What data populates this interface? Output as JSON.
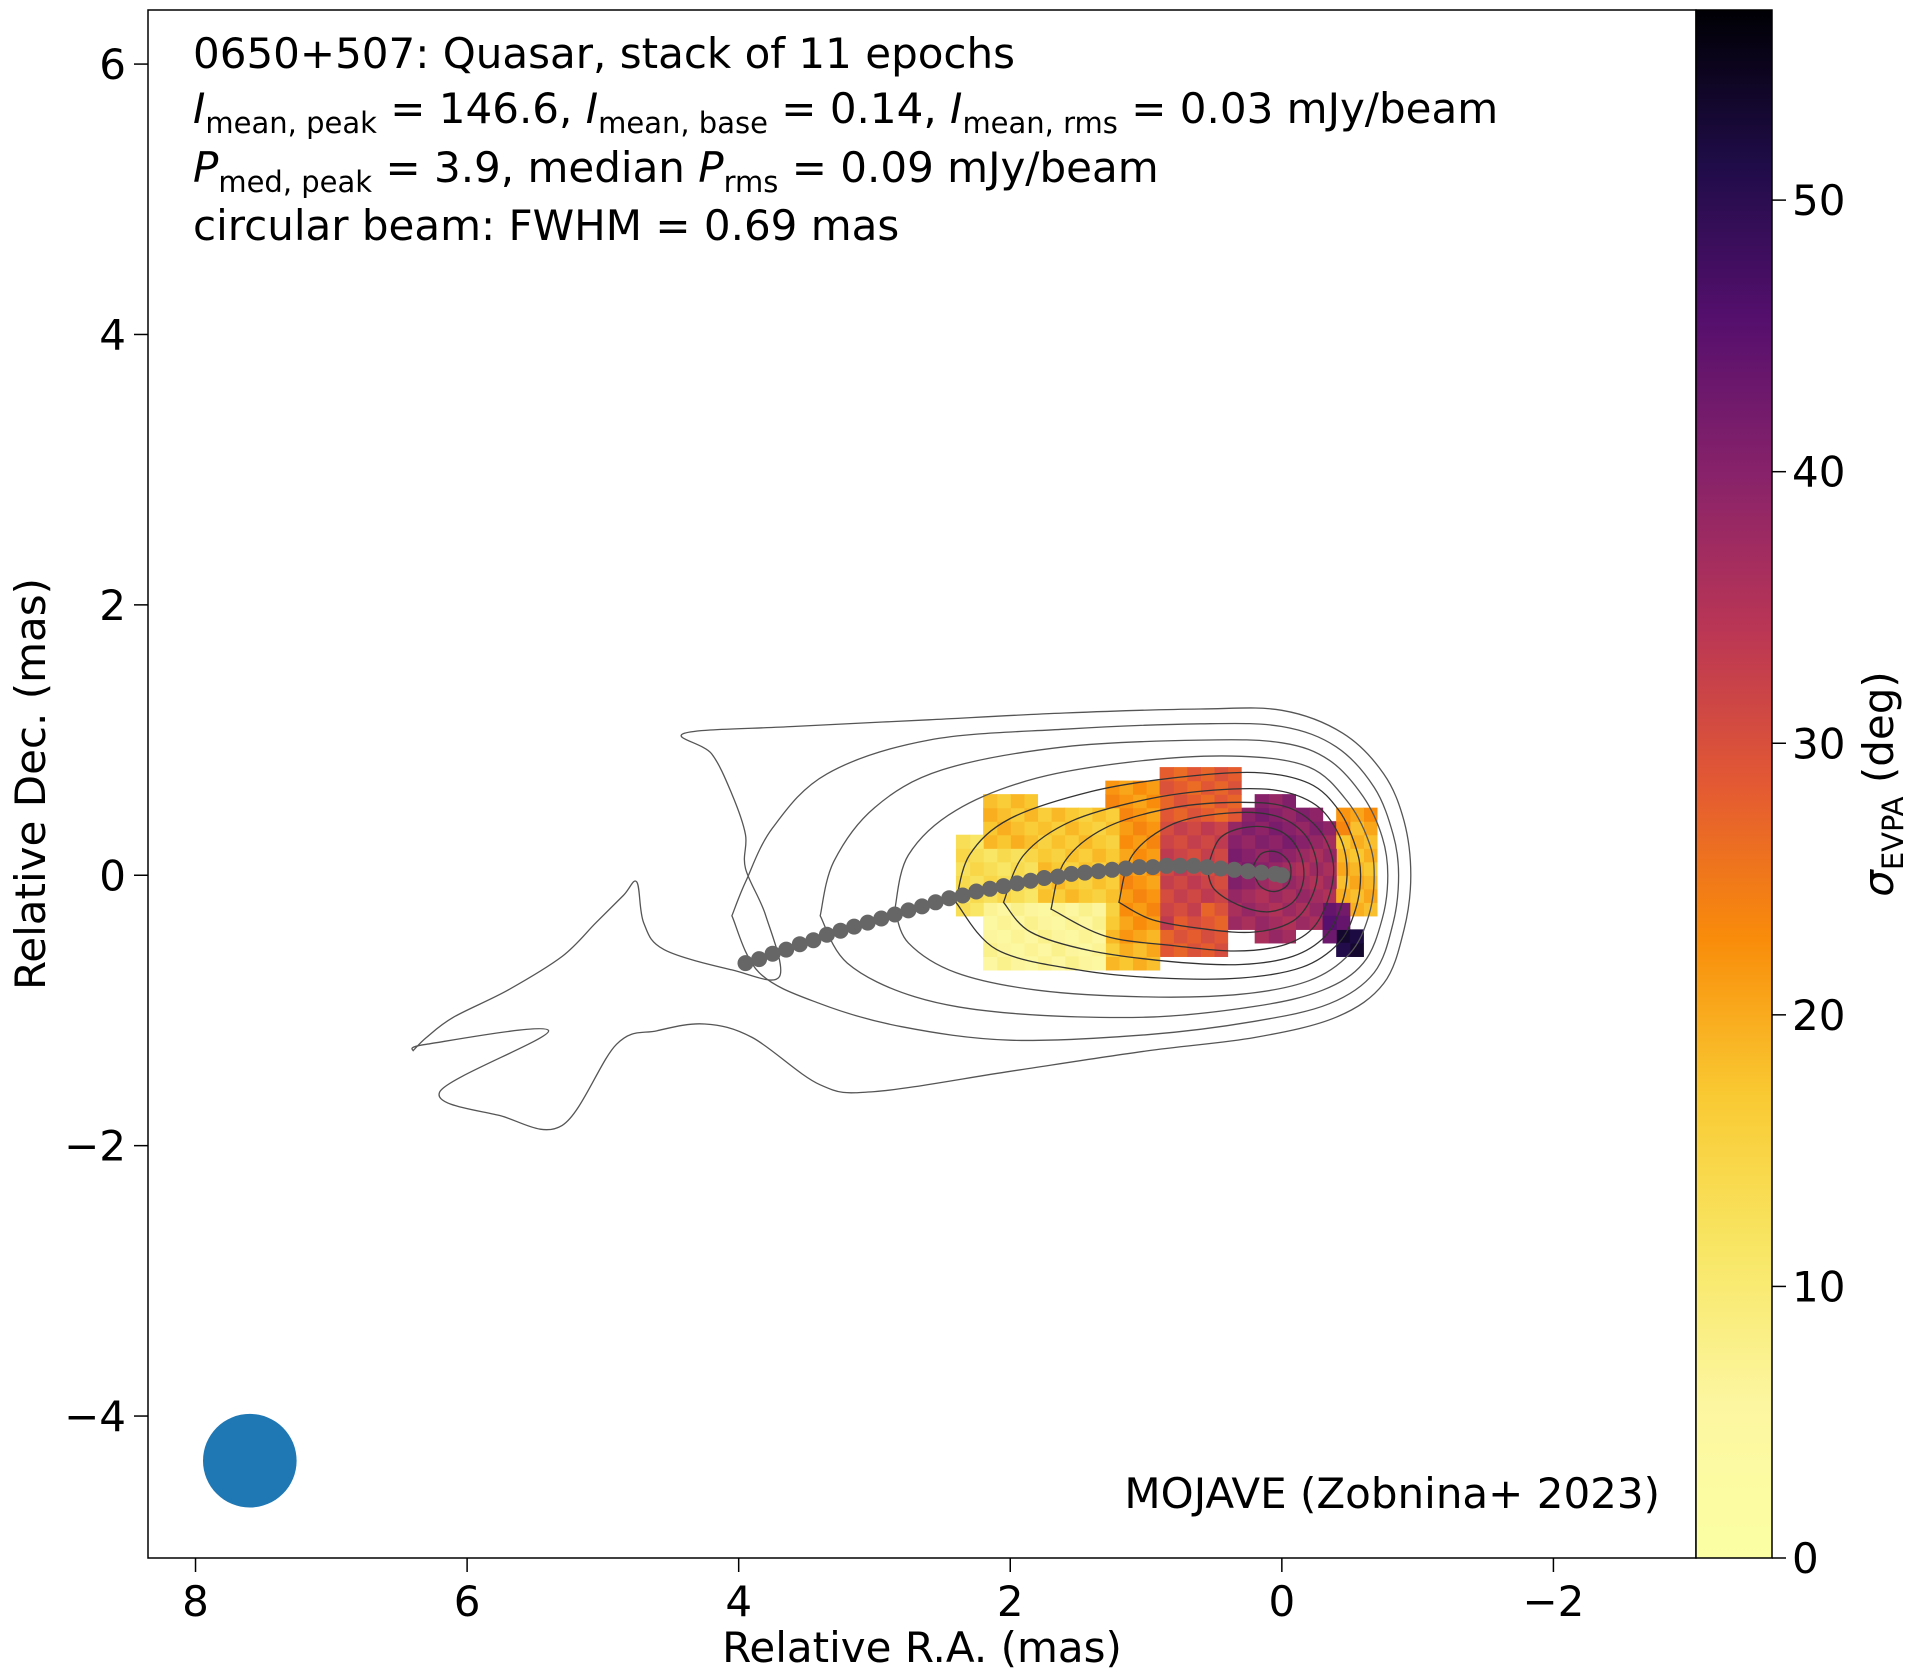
{
  "chart_data": {
    "type": "heatmap",
    "title_lines": {
      "line1": "0650+507: Quasar, stack of 11 epochs",
      "line2": {
        "i_peak_sym": "I",
        "i_peak_sub": "mean, peak",
        "i_peak_val": " = 146.6, ",
        "i_base_sym": "I",
        "i_base_sub": "mean, base",
        "i_base_val": " = 0.14, ",
        "i_rms_sym": "I",
        "i_rms_sub": "mean, rms",
        "i_rms_val": " = 0.03 mJy/beam"
      },
      "line3": {
        "p_peak_sym": "P",
        "p_peak_sub": "med, peak",
        "p_peak_val": " = 3.9, median ",
        "p_rms_sym": "P",
        "p_rms_sub": "rms",
        "p_rms_val": " = 0.09 mJy/beam"
      },
      "line4": "circular beam: FWHM = 0.69 mas"
    },
    "credit": "MOJAVE (Zobnina+ 2023)",
    "xlabel": "Relative R.A. (mas)",
    "ylabel": "Relative Dec. (mas)",
    "xlim": [
      8.35,
      -3.05
    ],
    "ylim": [
      -5.05,
      6.4
    ],
    "xticks": [
      8,
      6,
      4,
      2,
      0,
      -2
    ],
    "yticks": [
      6,
      4,
      2,
      0,
      -2,
      -4
    ],
    "xtick_labels": [
      "8",
      "6",
      "4",
      "2",
      "0",
      "−2"
    ],
    "ytick_labels": [
      "6",
      "4",
      "2",
      "0",
      "−2",
      "−4"
    ],
    "colorbar": {
      "label_sym": "σ",
      "label_sub": "EVPA",
      "label_unit": " (deg)",
      "range": [
        0,
        57
      ],
      "ticks": [
        0,
        10,
        20,
        30,
        40,
        50
      ],
      "tick_labels": [
        "0",
        "10",
        "20",
        "30",
        "40",
        "50"
      ],
      "colormap": "inferno_r"
    },
    "beam": {
      "ra": 7.6,
      "dec": -4.33,
      "fwhm": 0.69,
      "color": "#1f77b4"
    },
    "ridge_line": {
      "color": "#666666",
      "points": [
        [
          3.95,
          -0.65
        ],
        [
          3.85,
          -0.62
        ],
        [
          3.75,
          -0.58
        ],
        [
          3.65,
          -0.55
        ],
        [
          3.55,
          -0.51
        ],
        [
          3.45,
          -0.48
        ],
        [
          3.35,
          -0.44
        ],
        [
          3.25,
          -0.41
        ],
        [
          3.15,
          -0.38
        ],
        [
          3.05,
          -0.35
        ],
        [
          2.95,
          -0.32
        ],
        [
          2.85,
          -0.29
        ],
        [
          2.75,
          -0.26
        ],
        [
          2.65,
          -0.23
        ],
        [
          2.55,
          -0.2
        ],
        [
          2.45,
          -0.17
        ],
        [
          2.35,
          -0.15
        ],
        [
          2.25,
          -0.12
        ],
        [
          2.15,
          -0.1
        ],
        [
          2.05,
          -0.08
        ],
        [
          1.95,
          -0.06
        ],
        [
          1.85,
          -0.04
        ],
        [
          1.75,
          -0.02
        ],
        [
          1.65,
          -0.01
        ],
        [
          1.55,
          0.01
        ],
        [
          1.45,
          0.02
        ],
        [
          1.35,
          0.03
        ],
        [
          1.25,
          0.04
        ],
        [
          1.15,
          0.05
        ],
        [
          1.05,
          0.06
        ],
        [
          0.95,
          0.06
        ],
        [
          0.85,
          0.07
        ],
        [
          0.75,
          0.07
        ],
        [
          0.65,
          0.07
        ],
        [
          0.55,
          0.06
        ],
        [
          0.45,
          0.05
        ],
        [
          0.35,
          0.04
        ],
        [
          0.25,
          0.03
        ],
        [
          0.15,
          0.02
        ],
        [
          0.05,
          0.01
        ],
        [
          0.0,
          0.0
        ]
      ]
    },
    "contours": [
      [
        [
          6.4,
          -1.3
        ],
        [
          6.3,
          -1.2
        ],
        [
          6.1,
          -1.05
        ],
        [
          5.7,
          -0.85
        ],
        [
          5.3,
          -0.6
        ],
        [
          5.05,
          -0.35
        ],
        [
          4.85,
          -0.15
        ],
        [
          4.75,
          -0.05
        ],
        [
          4.7,
          -0.35
        ],
        [
          4.55,
          -0.55
        ],
        [
          4.05,
          -0.7
        ],
        [
          3.7,
          -0.75
        ],
        [
          3.8,
          -0.3
        ],
        [
          3.95,
          0.05
        ],
        [
          3.95,
          0.3
        ],
        [
          4.05,
          0.6
        ],
        [
          4.2,
          0.9
        ],
        [
          4.4,
          1.05
        ],
        [
          3.6,
          1.1
        ],
        [
          2.6,
          1.15
        ],
        [
          1.6,
          1.2
        ],
        [
          0.6,
          1.23
        ],
        [
          0.0,
          1.22
        ],
        [
          -0.45,
          1.05
        ],
        [
          -0.75,
          0.75
        ],
        [
          -0.9,
          0.4
        ],
        [
          -0.95,
          0.0
        ],
        [
          -0.9,
          -0.4
        ],
        [
          -0.75,
          -0.8
        ],
        [
          -0.4,
          -1.05
        ],
        [
          0.2,
          -1.2
        ],
        [
          1.0,
          -1.3
        ],
        [
          2.0,
          -1.45
        ],
        [
          3.0,
          -1.6
        ],
        [
          3.4,
          -1.55
        ],
        [
          3.9,
          -1.2
        ],
        [
          4.25,
          -1.1
        ],
        [
          4.6,
          -1.15
        ],
        [
          4.9,
          -1.25
        ],
        [
          5.3,
          -1.85
        ],
        [
          5.75,
          -1.78
        ],
        [
          6.2,
          -1.6
        ],
        [
          5.4,
          -1.15
        ],
        [
          6.3,
          -1.25
        ],
        [
          6.4,
          -1.3
        ]
      ],
      [
        [
          4.05,
          -0.3
        ],
        [
          3.95,
          -0.05
        ],
        [
          3.75,
          0.35
        ],
        [
          3.35,
          0.75
        ],
        [
          2.6,
          1.0
        ],
        [
          1.6,
          1.08
        ],
        [
          0.6,
          1.12
        ],
        [
          0.0,
          1.1
        ],
        [
          -0.4,
          0.95
        ],
        [
          -0.68,
          0.65
        ],
        [
          -0.82,
          0.3
        ],
        [
          -0.86,
          0.0
        ],
        [
          -0.82,
          -0.35
        ],
        [
          -0.68,
          -0.72
        ],
        [
          -0.35,
          -0.95
        ],
        [
          0.2,
          -1.08
        ],
        [
          1.0,
          -1.18
        ],
        [
          2.0,
          -1.22
        ],
        [
          2.8,
          -1.12
        ],
        [
          3.4,
          -0.95
        ],
        [
          3.85,
          -0.72
        ],
        [
          4.05,
          -0.3
        ]
      ],
      [
        [
          3.4,
          -0.3
        ],
        [
          3.3,
          0.1
        ],
        [
          3.0,
          0.5
        ],
        [
          2.5,
          0.78
        ],
        [
          1.6,
          0.95
        ],
        [
          0.6,
          1.0
        ],
        [
          0.0,
          0.98
        ],
        [
          -0.35,
          0.85
        ],
        [
          -0.6,
          0.58
        ],
        [
          -0.74,
          0.28
        ],
        [
          -0.78,
          0.0
        ],
        [
          -0.74,
          -0.32
        ],
        [
          -0.6,
          -0.65
        ],
        [
          -0.3,
          -0.85
        ],
        [
          0.2,
          -0.97
        ],
        [
          1.0,
          -1.05
        ],
        [
          2.0,
          -1.02
        ],
        [
          2.7,
          -0.9
        ],
        [
          3.2,
          -0.65
        ],
        [
          3.4,
          -0.3
        ]
      ],
      [
        [
          2.85,
          -0.25
        ],
        [
          2.75,
          0.15
        ],
        [
          2.4,
          0.48
        ],
        [
          1.8,
          0.72
        ],
        [
          1.0,
          0.85
        ],
        [
          0.3,
          0.88
        ],
        [
          -0.2,
          0.8
        ],
        [
          -0.48,
          0.55
        ],
        [
          -0.64,
          0.25
        ],
        [
          -0.68,
          0.0
        ],
        [
          -0.64,
          -0.3
        ],
        [
          -0.5,
          -0.58
        ],
        [
          -0.2,
          -0.78
        ],
        [
          0.3,
          -0.88
        ],
        [
          1.0,
          -0.9
        ],
        [
          1.8,
          -0.85
        ],
        [
          2.4,
          -0.72
        ],
        [
          2.75,
          -0.5
        ],
        [
          2.85,
          -0.25
        ]
      ],
      [
        [
          2.4,
          -0.2
        ],
        [
          2.3,
          0.15
        ],
        [
          2.0,
          0.42
        ],
        [
          1.4,
          0.62
        ],
        [
          0.8,
          0.72
        ],
        [
          0.2,
          0.76
        ],
        [
          -0.2,
          0.68
        ],
        [
          -0.42,
          0.48
        ],
        [
          -0.54,
          0.22
        ],
        [
          -0.58,
          0.0
        ],
        [
          -0.54,
          -0.26
        ],
        [
          -0.42,
          -0.5
        ],
        [
          -0.15,
          -0.68
        ],
        [
          0.3,
          -0.76
        ],
        [
          0.9,
          -0.76
        ],
        [
          1.5,
          -0.7
        ],
        [
          2.1,
          -0.55
        ],
        [
          2.4,
          -0.2
        ]
      ],
      [
        [
          2.05,
          -0.2
        ],
        [
          1.9,
          0.15
        ],
        [
          1.55,
          0.4
        ],
        [
          1.0,
          0.56
        ],
        [
          0.5,
          0.63
        ],
        [
          0.05,
          0.63
        ],
        [
          -0.25,
          0.52
        ],
        [
          -0.42,
          0.3
        ],
        [
          -0.48,
          0.05
        ],
        [
          -0.44,
          -0.22
        ],
        [
          -0.32,
          -0.45
        ],
        [
          -0.08,
          -0.6
        ],
        [
          0.3,
          -0.66
        ],
        [
          0.8,
          -0.64
        ],
        [
          1.4,
          -0.56
        ],
        [
          1.85,
          -0.42
        ],
        [
          2.05,
          -0.2
        ]
      ],
      [
        [
          1.7,
          -0.25
        ],
        [
          1.6,
          0.1
        ],
        [
          1.3,
          0.35
        ],
        [
          0.8,
          0.5
        ],
        [
          0.3,
          0.54
        ],
        [
          -0.05,
          0.5
        ],
        [
          -0.28,
          0.33
        ],
        [
          -0.38,
          0.08
        ],
        [
          -0.34,
          -0.18
        ],
        [
          -0.22,
          -0.4
        ],
        [
          0.0,
          -0.52
        ],
        [
          0.35,
          -0.56
        ],
        [
          0.8,
          -0.52
        ],
        [
          1.3,
          -0.45
        ],
        [
          1.7,
          -0.25
        ]
      ],
      [
        [
          1.2,
          -0.2
        ],
        [
          1.1,
          0.15
        ],
        [
          0.8,
          0.38
        ],
        [
          0.4,
          0.46
        ],
        [
          0.05,
          0.44
        ],
        [
          -0.17,
          0.3
        ],
        [
          -0.26,
          0.07
        ],
        [
          -0.22,
          -0.16
        ],
        [
          -0.08,
          -0.34
        ],
        [
          0.2,
          -0.42
        ],
        [
          0.55,
          -0.4
        ],
        [
          0.95,
          -0.33
        ],
        [
          1.2,
          -0.2
        ]
      ],
      [
        [
          0.55,
          0.05
        ],
        [
          0.45,
          0.28
        ],
        [
          0.22,
          0.36
        ],
        [
          0.0,
          0.32
        ],
        [
          -0.13,
          0.17
        ],
        [
          -0.16,
          -0.03
        ],
        [
          -0.08,
          -0.2
        ],
        [
          0.1,
          -0.27
        ],
        [
          0.32,
          -0.22
        ],
        [
          0.5,
          -0.1
        ],
        [
          0.55,
          0.05
        ]
      ],
      [
        [
          0.22,
          0.05
        ],
        [
          0.15,
          0.16
        ],
        [
          0.03,
          0.17
        ],
        [
          -0.06,
          0.08
        ],
        [
          -0.05,
          -0.06
        ],
        [
          0.05,
          -0.12
        ],
        [
          0.16,
          -0.08
        ],
        [
          0.22,
          0.05
        ]
      ]
    ],
    "heatmap": {
      "grid_step": 0.1,
      "regions": [
        {
          "shape": "disk",
          "ra": 0.05,
          "dec": 0.05,
          "radius": 0.52,
          "value": 40
        },
        {
          "shape": "box",
          "ra0": 0.45,
          "ra1": 0.95,
          "dec0": -0.55,
          "dec1": 0.55,
          "value": 32
        },
        {
          "shape": "box",
          "ra0": 0.95,
          "ra1": 1.25,
          "dec0": -0.65,
          "dec1": 0.65,
          "value": 22
        },
        {
          "shape": "box",
          "ra0": 1.25,
          "ra1": 1.85,
          "dec0": -0.55,
          "dec1": 0.45,
          "value": 17
        },
        {
          "shape": "box",
          "ra0": 1.85,
          "ra1": 2.35,
          "dec0": -0.35,
          "dec1": 0.25,
          "value": 13
        },
        {
          "shape": "box",
          "ra0": 1.3,
          "ra1": 2.15,
          "dec0": -0.7,
          "dec1": -0.2,
          "value": 6
        },
        {
          "shape": "box",
          "ra0": 0.3,
          "ra1": 0.95,
          "dec0": 0.45,
          "dec1": 0.85,
          "value": 28
        },
        {
          "shape": "box",
          "ra0": -0.65,
          "ra1": -0.45,
          "dec0": -0.3,
          "dec1": 0.5,
          "value": 22
        },
        {
          "shape": "box",
          "ra0": -0.45,
          "ra1": -0.3,
          "dec0": -0.45,
          "dec1": -0.25,
          "value": 47
        },
        {
          "shape": "box",
          "ra0": -0.6,
          "ra1": -0.45,
          "dec0": -0.55,
          "dec1": -0.4,
          "value": 55
        },
        {
          "shape": "box",
          "ra0": 1.85,
          "ra1": 2.2,
          "dec0": 0.25,
          "dec1": 0.6,
          "value": 18
        }
      ]
    }
  }
}
